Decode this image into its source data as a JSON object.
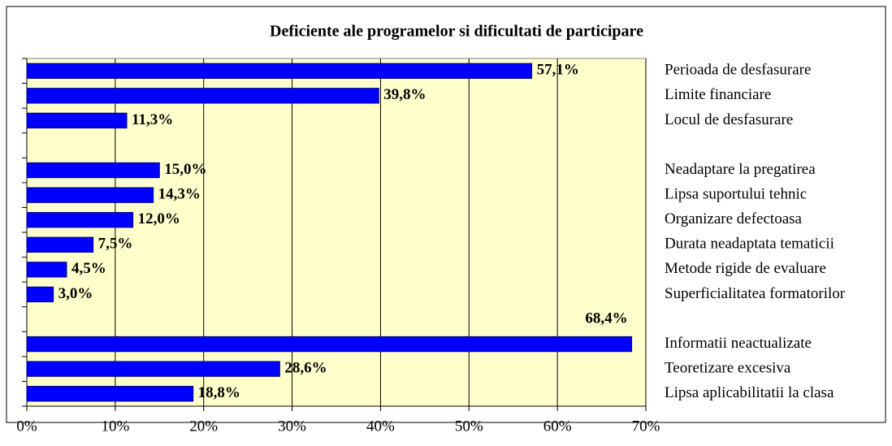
{
  "chart_data": {
    "type": "bar",
    "orientation": "horizontal",
    "title": "Deficiente ale programelor si dificultati de participare",
    "categories": [
      "Perioada de desfasurare",
      "Limite financiare",
      "Locul de desfasurare",
      null,
      "Neadaptare la pregatirea",
      "Lipsa suportului tehnic",
      "Organizare defectoasa",
      "Durata neadaptata tematicii",
      "Metode rigide de evaluare",
      "Superficialitatea  formatorilor",
      null,
      "Informatii neactualizate",
      "Teoretizare excesiva",
      "Lipsa aplicabilitatii la clasa"
    ],
    "values": [
      57.1,
      39.8,
      11.3,
      null,
      15.0,
      14.3,
      12.0,
      7.5,
      4.5,
      3.0,
      null,
      68.4,
      28.6,
      18.8
    ],
    "value_labels": [
      "57,1%",
      "39,8%",
      "11,3%",
      null,
      "15,0%",
      "14,3%",
      "12,0%",
      "7,5%",
      "4,5%",
      "3,0%",
      null,
      "68,4%",
      "28,6%",
      "18,8%"
    ],
    "color": "#0000ff",
    "xlim": [
      0,
      70
    ],
    "xticks": [
      {
        "value": 0,
        "label": "0%"
      },
      {
        "value": 10,
        "label": "10%"
      },
      {
        "value": 20,
        "label": "20%"
      },
      {
        "value": 30,
        "label": "30%"
      },
      {
        "value": 40,
        "label": "40%"
      },
      {
        "value": 50,
        "label": "50%"
      },
      {
        "value": 60,
        "label": "60%"
      },
      {
        "value": 70,
        "label": "70%"
      }
    ],
    "grid": true
  }
}
